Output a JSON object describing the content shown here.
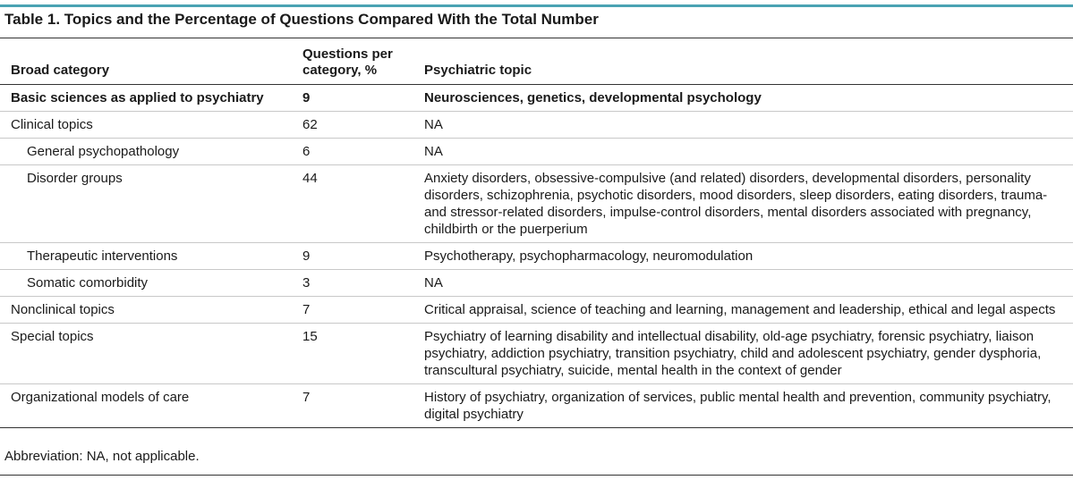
{
  "table": {
    "title": "Table 1. Topics and the Percentage of Questions Compared With the Total Number",
    "headers": {
      "category": "Broad category",
      "percent": "Questions per category, %",
      "topic": "Psychiatric topic"
    },
    "rows": [
      {
        "category": "Basic sciences as applied to psychiatry",
        "percent": "9",
        "topic": "Neurosciences, genetics, developmental psychology"
      },
      {
        "category": "Clinical topics",
        "percent": "62",
        "topic": "NA"
      },
      {
        "category": "General psychopathology",
        "percent": "6",
        "topic": "NA"
      },
      {
        "category": "Disorder groups",
        "percent": "44",
        "topic": "Anxiety disorders, obsessive-compulsive (and related) disorders, developmental disorders, personality disorders, schizophrenia, psychotic disorders, mood disorders, sleep disorders, eating disorders, trauma- and stressor-related disorders, impulse-control disorders, mental disorders associated with pregnancy, childbirth or the puerperium"
      },
      {
        "category": "Therapeutic interventions",
        "percent": "9",
        "topic": "Psychotherapy, psychopharmacology, neuromodulation"
      },
      {
        "category": "Somatic comorbidity",
        "percent": "3",
        "topic": "NA"
      },
      {
        "category": "Nonclinical topics",
        "percent": "7",
        "topic": "Critical appraisal, science of teaching and learning, management and leadership, ethical and legal aspects"
      },
      {
        "category": "Special topics",
        "percent": "15",
        "topic": "Psychiatry of learning disability and intellectual disability, old-age psychiatry, forensic psychiatry, liaison psychiatry, addiction psychiatry, transition psychiatry, child and adolescent psychiatry, gender dysphoria, transcultural psychiatry, suicide, mental health in the context of gender"
      },
      {
        "category": "Organizational models of care",
        "percent": "7",
        "topic": "History of psychiatry, organization of services, public mental health and prevention, community psychiatry, digital psychiatry"
      }
    ],
    "footnote": "Abbreviation: NA, not applicable."
  },
  "colors": {
    "accent_rule": "#4aa3b3",
    "text": "#1a1a1a"
  }
}
